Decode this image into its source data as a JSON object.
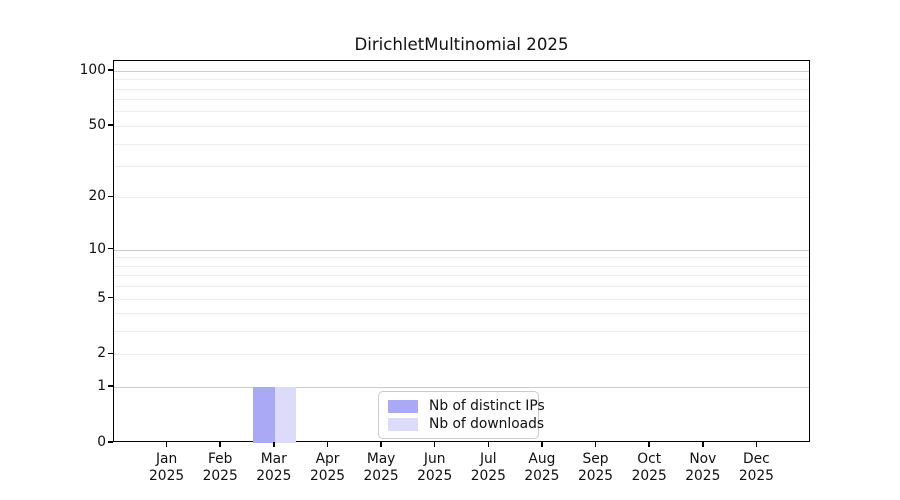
{
  "title": {
    "text": "DirichletMultinomial 2025"
  },
  "legend": {
    "position": "lower center",
    "items": [
      {
        "key": "distinct-ips",
        "label": "Nb of distinct IPs",
        "color": "#a9a9f5"
      },
      {
        "key": "downloads",
        "label": "Nb of downloads",
        "color": "#dcdcfa"
      }
    ]
  },
  "chart_data": {
    "type": "bar",
    "title": "DirichletMultinomial 2025",
    "categories": [
      "Jan",
      "Feb",
      "Mar",
      "Apr",
      "May",
      "Jun",
      "Jul",
      "Aug",
      "Sep",
      "Oct",
      "Nov",
      "Dec"
    ],
    "category_year": "2025",
    "series": [
      {
        "name": "Nb of distinct IPs",
        "key": "distinct-ips",
        "color": "#a9a9f5",
        "values": [
          0,
          0,
          1,
          0,
          0,
          0,
          0,
          0,
          0,
          0,
          0,
          0
        ]
      },
      {
        "name": "Nb of downloads",
        "key": "downloads",
        "color": "#dcdcfa",
        "values": [
          0,
          0,
          1,
          0,
          0,
          0,
          0,
          0,
          0,
          0,
          0,
          0
        ]
      }
    ],
    "y_scale": "log1p",
    "ylim": [
      0,
      113
    ],
    "y_ticks": [
      0,
      1,
      2,
      5,
      10,
      20,
      50,
      100
    ],
    "y_major_gridlines": [
      1,
      10,
      100
    ],
    "y_minor_gridlines": [
      2,
      3,
      4,
      5,
      6,
      7,
      8,
      9,
      20,
      30,
      40,
      50,
      60,
      70,
      80,
      90
    ],
    "grid": true,
    "legend_position": "lower center",
    "xlabel": "",
    "ylabel": ""
  },
  "colors": {
    "grid_major": "#cdcdcd",
    "grid_minor": "#ececec",
    "spine": "#000000",
    "text": "#111111",
    "legend_border": "#cccccc"
  }
}
